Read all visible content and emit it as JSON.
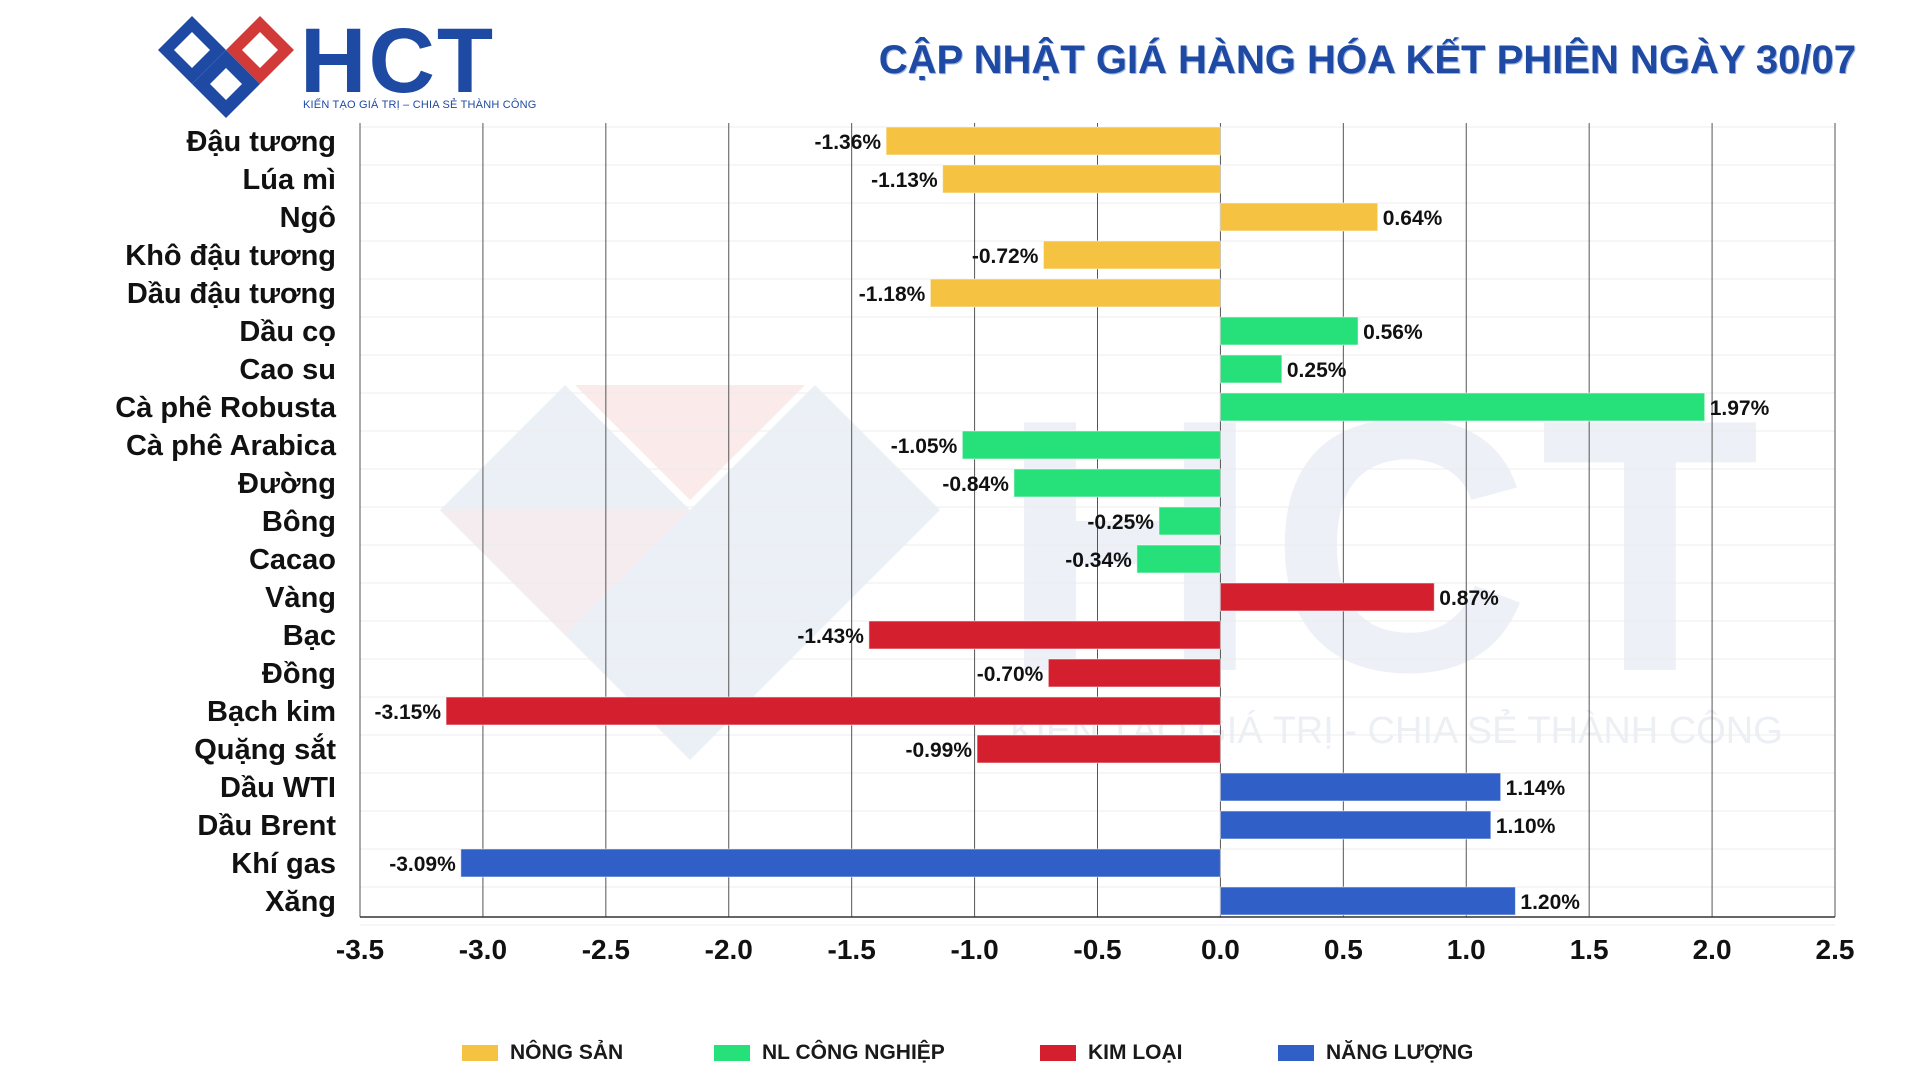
{
  "header": {
    "brand_name": "HCT",
    "brand_tagline": "KIẾN TẠO GIÁ TRỊ – CHIA SẺ THÀNH CÔNG",
    "title": "CẬP NHẬT GIÁ HÀNG HÓA KẾT PHIÊN NGÀY 30/07"
  },
  "watermark": {
    "text": "HCT",
    "tagline": "KIẾN TẠO GIÁ TRỊ - CHIA SẺ THÀNH CÔNG"
  },
  "chart_data": {
    "type": "bar",
    "orientation": "horizontal",
    "title": "CẬP NHẬT GIÁ HÀNG HÓA KẾT PHIÊN NGÀY 30/07",
    "xlabel": "",
    "ylabel": "",
    "xlim": [
      -3.5,
      2.5
    ],
    "x_ticks": [
      -3.5,
      -3.0,
      -2.5,
      -2.0,
      -1.5,
      -1.0,
      -0.5,
      0.0,
      0.5,
      1.0,
      1.5,
      2.0,
      2.5
    ],
    "x_tick_labels": [
      "-3.5",
      "-3.0",
      "-2.5",
      "-2.0",
      "-1.5",
      "-1.0",
      "-0.5",
      "0.0",
      "0.5",
      "1.0",
      "1.5",
      "2.0",
      "2.5"
    ],
    "grid": true,
    "legend_position": "bottom",
    "groups": [
      {
        "name": "NÔNG SẢN",
        "color": "#F5C242"
      },
      {
        "name": "NL CÔNG NGHIỆP",
        "color": "#26E07A"
      },
      {
        "name": "KIM LOẠI",
        "color": "#D41F2F"
      },
      {
        "name": "NĂNG LƯỢNG",
        "color": "#2F5FC7"
      }
    ],
    "bars": [
      {
        "category": "Đậu tương",
        "value": -1.36,
        "label": "-1.36%",
        "group": 0
      },
      {
        "category": "Lúa mì",
        "value": -1.13,
        "label": "-1.13%",
        "group": 0
      },
      {
        "category": "Ngô",
        "value": 0.64,
        "label": "0.64%",
        "group": 0
      },
      {
        "category": "Khô đậu tương",
        "value": -0.72,
        "label": "-0.72%",
        "group": 0
      },
      {
        "category": "Dầu đậu tương",
        "value": -1.18,
        "label": "-1.18%",
        "group": 0
      },
      {
        "category": "Dầu cọ",
        "value": 0.56,
        "label": "0.56%",
        "group": 1
      },
      {
        "category": "Cao su",
        "value": 0.25,
        "label": "0.25%",
        "group": 1
      },
      {
        "category": "Cà phê Robusta",
        "value": 1.97,
        "label": "1.97%",
        "group": 1
      },
      {
        "category": "Cà phê Arabica",
        "value": -1.05,
        "label": "-1.05%",
        "group": 1
      },
      {
        "category": "Đường",
        "value": -0.84,
        "label": "-0.84%",
        "group": 1
      },
      {
        "category": "Bông",
        "value": -0.25,
        "label": "-0.25%",
        "group": 1
      },
      {
        "category": "Cacao",
        "value": -0.34,
        "label": "-0.34%",
        "group": 1
      },
      {
        "category": "Vàng",
        "value": 0.87,
        "label": "0.87%",
        "group": 2
      },
      {
        "category": "Bạc",
        "value": -1.43,
        "label": "-1.43%",
        "group": 2
      },
      {
        "category": "Đồng",
        "value": -0.7,
        "label": "-0.70%",
        "group": 2
      },
      {
        "category": "Bạch kim",
        "value": -3.15,
        "label": "-3.15%",
        "group": 2
      },
      {
        "category": "Quặng sắt",
        "value": -0.99,
        "label": "-0.99%",
        "group": 2
      },
      {
        "category": "Dầu WTI",
        "value": 1.14,
        "label": "1.14%",
        "group": 3
      },
      {
        "category": "Dầu Brent",
        "value": 1.1,
        "label": "1.10%",
        "group": 3
      },
      {
        "category": "Khí gas",
        "value": -3.09,
        "label": "-3.09%",
        "group": 3
      },
      {
        "category": "Xăng",
        "value": 1.2,
        "label": "1.20%",
        "group": 3
      }
    ]
  }
}
